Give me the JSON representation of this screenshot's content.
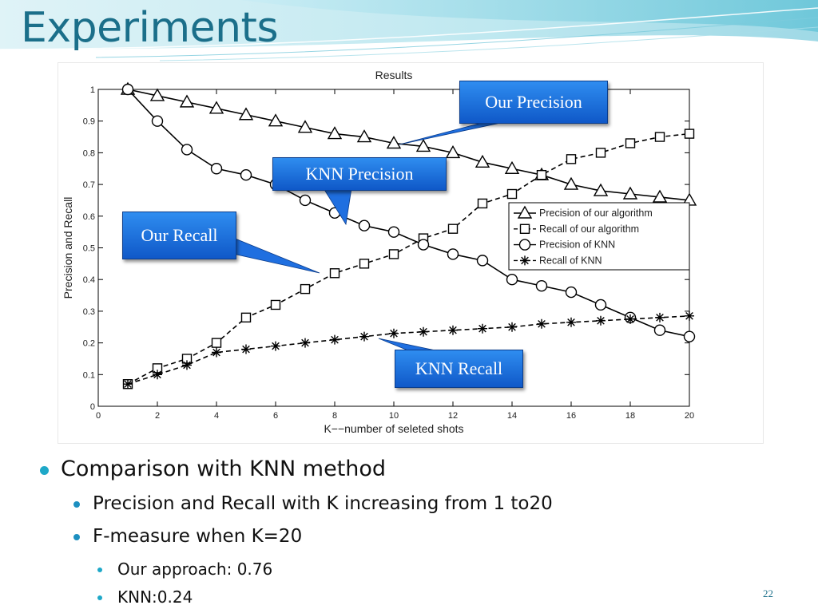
{
  "slide": {
    "title": "Experiments",
    "page_number": "22"
  },
  "callouts": {
    "our_precision": "Our Precision",
    "knn_precision": "KNN Precision",
    "our_recall": "Our Recall",
    "knn_recall": "KNN Recall"
  },
  "bullets": {
    "level1": "Comparison with KNN method",
    "level2": [
      "Precision and Recall with K increasing from 1 to20",
      "F-measure when K=20"
    ],
    "level3": [
      "Our approach: 0.76",
      "KNN:0.24"
    ]
  },
  "colors": {
    "title": "#1b6f8a",
    "bullet_accent": "#1ea8c8",
    "callout_fill": "#1f73de",
    "callout_text": "#ffffff"
  },
  "chart_data": {
    "type": "line",
    "title": "Results",
    "xlabel": "K−−number of seleted shots",
    "ylabel": "Precision and Recall",
    "xlim": [
      0,
      20
    ],
    "ylim": [
      0,
      1
    ],
    "xticks": [
      0,
      2,
      4,
      6,
      8,
      10,
      12,
      14,
      16,
      18,
      20
    ],
    "yticks": [
      0,
      0.1,
      0.2,
      0.3,
      0.4,
      0.5,
      0.6,
      0.7,
      0.8,
      0.9,
      1
    ],
    "grid": false,
    "legend_position": "right",
    "x": [
      1,
      2,
      3,
      4,
      5,
      6,
      7,
      8,
      9,
      10,
      11,
      12,
      13,
      14,
      15,
      16,
      17,
      18,
      19,
      20
    ],
    "series": [
      {
        "name": "Precision of our algorithm",
        "marker": "triangle",
        "line": "solid",
        "values": [
          1.0,
          0.98,
          0.96,
          0.94,
          0.92,
          0.9,
          0.88,
          0.86,
          0.85,
          0.83,
          0.82,
          0.8,
          0.77,
          0.75,
          0.73,
          0.7,
          0.68,
          0.67,
          0.66,
          0.65
        ]
      },
      {
        "name": "Recall of our algorithm",
        "marker": "square",
        "line": "dashed",
        "values": [
          0.07,
          0.12,
          0.15,
          0.2,
          0.28,
          0.32,
          0.37,
          0.42,
          0.45,
          0.48,
          0.53,
          0.56,
          0.64,
          0.67,
          0.73,
          0.78,
          0.8,
          0.83,
          0.85,
          0.86
        ]
      },
      {
        "name": "Precision of KNN",
        "marker": "circle",
        "line": "solid",
        "values": [
          1.0,
          0.9,
          0.81,
          0.75,
          0.73,
          0.7,
          0.65,
          0.61,
          0.57,
          0.55,
          0.51,
          0.48,
          0.46,
          0.4,
          0.38,
          0.36,
          0.32,
          0.28,
          0.24,
          0.22
        ]
      },
      {
        "name": "Recall of KNN",
        "marker": "star",
        "line": "dashed",
        "values": [
          0.07,
          0.1,
          0.13,
          0.17,
          0.18,
          0.19,
          0.2,
          0.21,
          0.22,
          0.23,
          0.235,
          0.24,
          0.245,
          0.25,
          0.26,
          0.265,
          0.27,
          0.275,
          0.28,
          0.285
        ]
      }
    ]
  }
}
